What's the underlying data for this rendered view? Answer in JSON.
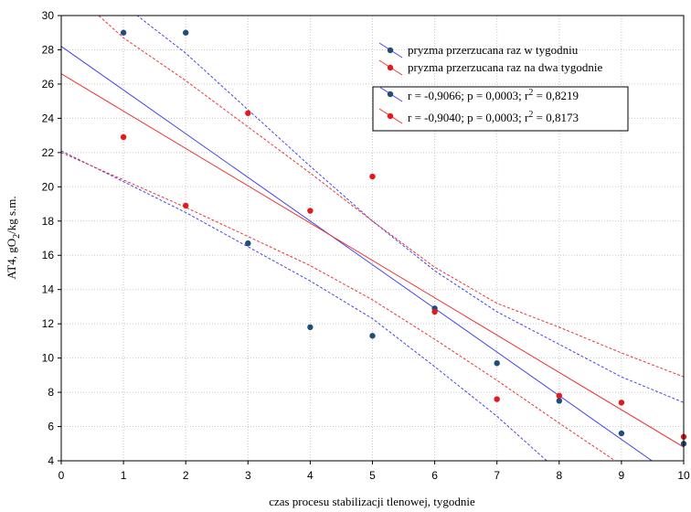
{
  "chart_data": {
    "type": "scatter",
    "xlabel": "czas procesu stabilizacji tlenowej, tygodnie",
    "ylabel": {
      "prefix": "AT4, gO",
      "sub": "2",
      "suffix": "/kg s.m."
    },
    "xlim": [
      0,
      10
    ],
    "ylim": [
      4,
      30
    ],
    "xticks": [
      0,
      1,
      2,
      3,
      4,
      5,
      6,
      7,
      8,
      9,
      10
    ],
    "yticks": [
      4,
      6,
      8,
      10,
      12,
      14,
      16,
      18,
      20,
      22,
      24,
      26,
      28,
      30
    ],
    "grid": true,
    "legend_position": "top-right",
    "series": [
      {
        "name": "pryzma przerzucana raz w tygodniu",
        "color": "#1f4e79",
        "line_color": "#4444ee",
        "x": [
          1,
          2,
          3,
          4,
          5,
          6,
          7,
          8,
          9,
          10
        ],
        "y": [
          29.0,
          29.0,
          16.7,
          11.8,
          11.3,
          12.9,
          9.7,
          7.5,
          5.6,
          5.0
        ],
        "fit": {
          "intercept": 28.2,
          "slope": -2.55
        },
        "conf_lower": [
          [
            0,
            22.1
          ],
          [
            2,
            18.5
          ],
          [
            3,
            16.5
          ],
          [
            4,
            14.5
          ],
          [
            5,
            12.3
          ],
          [
            6,
            9.5
          ],
          [
            7,
            6.6
          ],
          [
            7.8,
            4.0
          ]
        ],
        "conf_upper": [
          [
            0,
            34.3
          ],
          [
            1.22,
            30.0
          ],
          [
            2,
            27.8
          ],
          [
            3,
            24.5
          ],
          [
            4,
            21.2
          ],
          [
            5,
            18.0
          ],
          [
            6,
            15.1
          ],
          [
            7,
            12.7
          ],
          [
            8,
            10.8
          ],
          [
            9,
            8.9
          ],
          [
            10,
            7.4
          ]
        ],
        "stats": {
          "prefix": "r = -0,9066; p = 0,0003; r",
          "sup": "2",
          "suffix": " = 0,8219"
        }
      },
      {
        "name": "pryzma przerzucana raz na dwa tygodnie",
        "color": "#e31a1c",
        "line_color": "#ee3333",
        "x": [
          1,
          2,
          3,
          4,
          5,
          6,
          7,
          8,
          9,
          10
        ],
        "y": [
          22.9,
          18.9,
          24.3,
          18.6,
          20.6,
          12.7,
          7.6,
          7.8,
          7.4,
          5.4
        ],
        "fit": {
          "intercept": 26.6,
          "slope": -2.18
        },
        "conf_lower": [
          [
            0,
            22.0
          ],
          [
            2,
            18.8
          ],
          [
            3,
            17.1
          ],
          [
            4,
            15.4
          ],
          [
            5,
            13.4
          ],
          [
            6,
            11.1
          ],
          [
            7,
            8.7
          ],
          [
            8,
            6.2
          ],
          [
            8.9,
            4.0
          ]
        ],
        "conf_upper": [
          [
            0,
            31.5
          ],
          [
            0.6,
            30.0
          ],
          [
            1,
            28.7
          ],
          [
            2,
            26.2
          ],
          [
            3,
            23.5
          ],
          [
            4,
            20.8
          ],
          [
            5,
            18.0
          ],
          [
            6,
            15.3
          ],
          [
            7,
            13.2
          ],
          [
            8,
            11.8
          ],
          [
            9,
            10.3
          ],
          [
            10,
            8.9
          ]
        ],
        "stats": {
          "prefix": "r = -0,9040; p = 0,0003; r",
          "sup": "2",
          "suffix": " = 0,8173"
        }
      }
    ]
  }
}
